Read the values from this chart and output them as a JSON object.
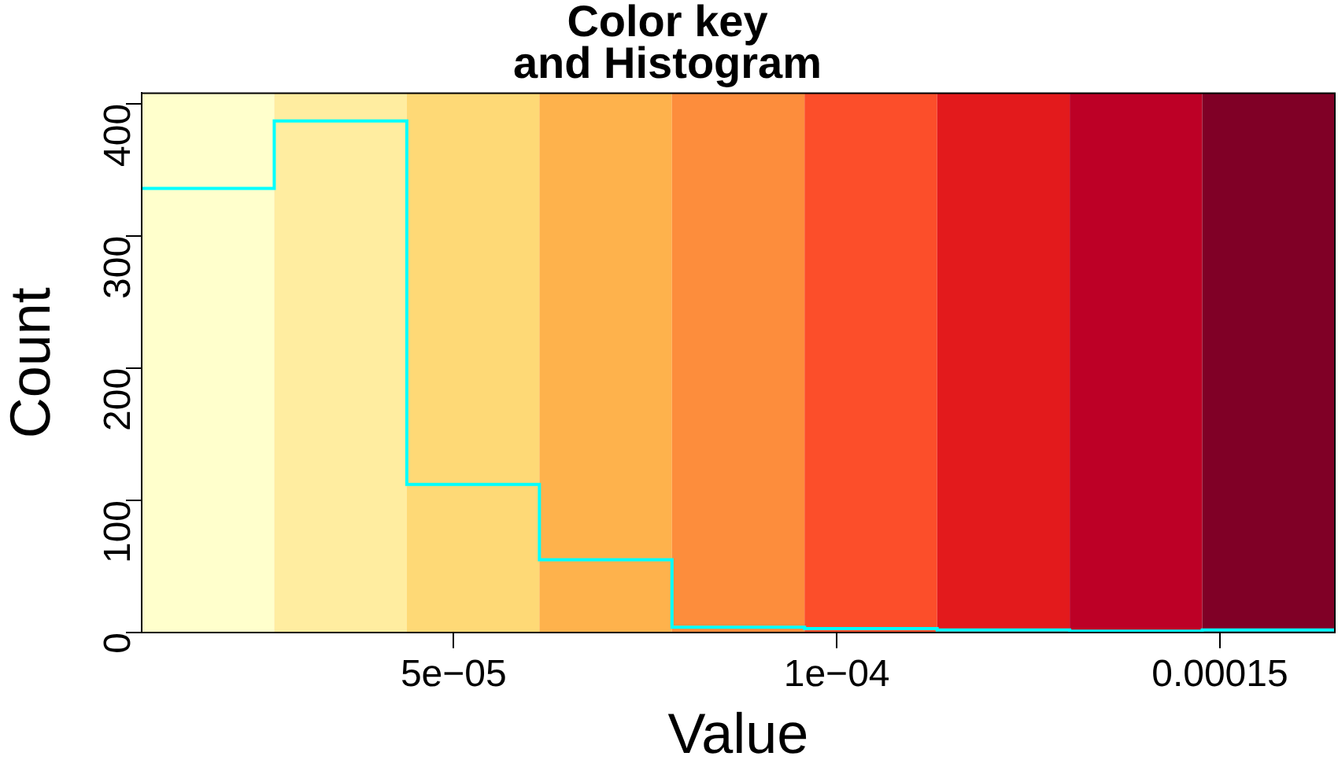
{
  "chart_data": {
    "type": "step",
    "title": "Color key\nand Histogram",
    "xlabel": "Value",
    "ylabel": "Count",
    "x": [
      9.3e-06,
      2.66e-05,
      4.39e-05,
      6.12e-05,
      7.85e-05,
      9.58e-05,
      0.0001131,
      0.0001304,
      0.0001477,
      0.000165
    ],
    "values": [
      336,
      387,
      112,
      55,
      4,
      3,
      2,
      1,
      2,
      2
    ],
    "color": "#00ffff",
    "bands": [
      {
        "axis": "x",
        "from": 9.3e-06,
        "to": 2.66e-05,
        "color": "#ffffcc"
      },
      {
        "axis": "x",
        "from": 2.66e-05,
        "to": 4.39e-05,
        "color": "#ffeda0"
      },
      {
        "axis": "x",
        "from": 4.39e-05,
        "to": 6.12e-05,
        "color": "#fed976"
      },
      {
        "axis": "x",
        "from": 6.12e-05,
        "to": 7.85e-05,
        "color": "#feb24c"
      },
      {
        "axis": "x",
        "from": 7.85e-05,
        "to": 9.58e-05,
        "color": "#fd8d3c"
      },
      {
        "axis": "x",
        "from": 9.58e-05,
        "to": 0.0001131,
        "color": "#fc4e2a"
      },
      {
        "axis": "x",
        "from": 0.0001131,
        "to": 0.0001304,
        "color": "#e31a1c"
      },
      {
        "axis": "x",
        "from": 0.0001304,
        "to": 0.0001477,
        "color": "#bd0026"
      },
      {
        "axis": "x",
        "from": 0.0001477,
        "to": 0.000165,
        "color": "#800026"
      }
    ],
    "xlim": [
      9.3e-06,
      0.000165
    ],
    "ylim": [
      0,
      408
    ],
    "xticks": [
      {
        "value": 5e-05,
        "label": "5e−05"
      },
      {
        "value": 0.0001,
        "label": "1e−04"
      },
      0.00015
    ],
    "yticks": [
      0,
      100,
      200,
      300,
      400
    ],
    "grid": false,
    "legend": false
  }
}
